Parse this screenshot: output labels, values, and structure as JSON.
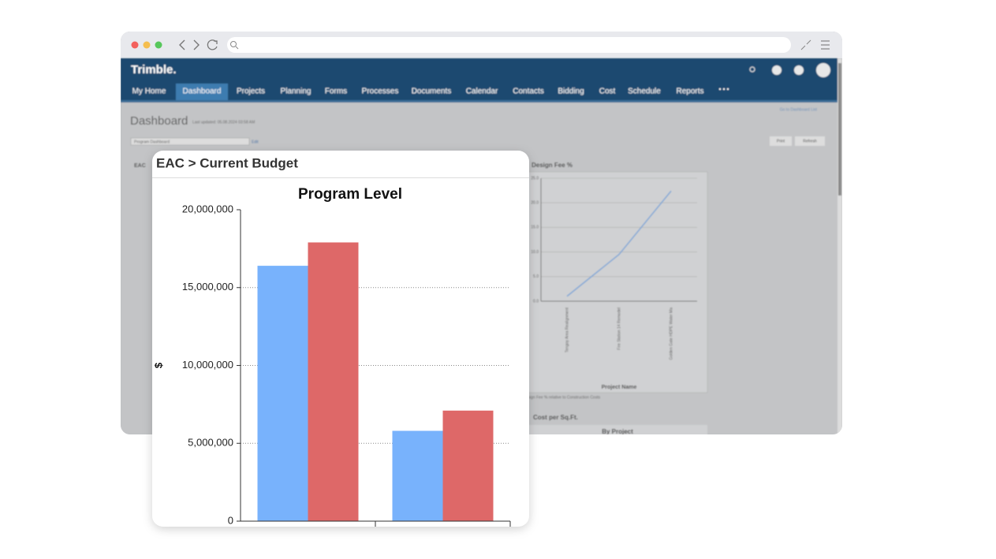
{
  "app": {
    "brand": "Trimble.",
    "nav": [
      "My Home",
      "Dashboard",
      "Projects",
      "Planning",
      "Forms",
      "Processes",
      "Documents",
      "Calendar",
      "Contacts",
      "Bidding",
      "Cost",
      "Schedule",
      "Reports"
    ],
    "page_title": "Dashboard",
    "last_updated": "Last updated: 05.08.2024 03:58 AM",
    "dashboard_select": "Program Dashboard",
    "edit": "Edit",
    "dashboard_list": "Go to Dashboard List",
    "print": "Print",
    "refresh": "Refresh",
    "left_widget_title": "EAC",
    "note": "Design Fee % relative to Construction Costs",
    "lower_widget_title": "Cost per Sq.Ft.",
    "lower_widget_subtitle": "By Project"
  },
  "card": {
    "title": "EAC > Current Budget"
  },
  "chart_data": [
    {
      "type": "line",
      "title": "Design Fee %",
      "x_label": "Project Name",
      "categories": [
        "Tengoy Area Realignment",
        "Fire Station 14 Remodel",
        "Golden Gate HDPE Water Ma"
      ],
      "series": [
        {
          "color": "#7ea6d6",
          "values": [
            1.0,
            9.5,
            22.4
          ]
        }
      ],
      "ylim": [
        0,
        25
      ],
      "yticks": [
        {
          "value": 0,
          "label": "0.0"
        },
        {
          "value": 5,
          "label": "5.0"
        },
        {
          "value": 10,
          "label": "10.0"
        },
        {
          "value": 15,
          "label": "15.0"
        },
        {
          "value": 20,
          "label": "20.0"
        },
        {
          "value": 25,
          "label": "25.0"
        }
      ],
      "grid": true
    },
    {
      "type": "bar",
      "title": "Program Level",
      "y_label": "$",
      "categories": [
        null,
        null
      ],
      "series": [
        {
          "color": "#78b2fc",
          "values": [
            16400000,
            5800000
          ]
        },
        {
          "color": "#de6868",
          "values": [
            17900000,
            7100000
          ]
        }
      ],
      "ylim": [
        0,
        20000000
      ],
      "yticks": [
        0,
        {
          "value": 5000000,
          "label": "5,000,000"
        },
        {
          "value": 10000000,
          "label": "10,000,000"
        },
        {
          "value": 15000000,
          "label": "15,000,000"
        },
        {
          "value": 20000000,
          "label": "20,000,000"
        }
      ],
      "grid": true
    }
  ]
}
